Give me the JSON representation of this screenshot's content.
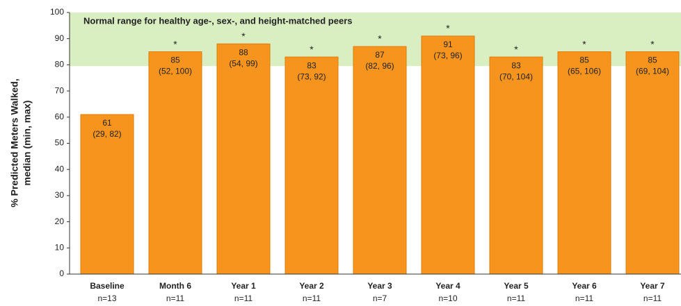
{
  "chart_data": {
    "type": "bar",
    "annotation": "Normal range for healthy age-, sex-, and height-matched peers",
    "normal_range": [
      79.5,
      100
    ],
    "normal_color": "#d9efc2",
    "ylabel": [
      "% Predicted Meters Walked,",
      "median (min, max)"
    ],
    "categories": [
      "Baseline",
      "Month 6",
      "Year 1",
      "Year 2",
      "Year 3",
      "Year 4",
      "Year 5",
      "Year 6",
      "Year 7"
    ],
    "n": [
      "n=13",
      "n=11",
      "n=11",
      "n=11",
      "n=7",
      "n=10",
      "n=11",
      "n=11",
      "n=11"
    ],
    "values": [
      61,
      85,
      88,
      83,
      87,
      91,
      83,
      85,
      85
    ],
    "ranges": [
      "(29, 82)",
      "(52, 100)",
      "(54, 99)",
      "(73, 92)",
      "(82, 96)",
      "(73, 96)",
      "(70, 104)",
      "(65, 106)",
      "(69, 104)"
    ],
    "markers": [
      null,
      "*",
      "*",
      "*",
      "*",
      "*",
      "*",
      "*",
      "*"
    ],
    "color": "#f7941d",
    "ylim": [
      0,
      100
    ],
    "yticks": [
      0,
      10,
      20,
      30,
      40,
      50,
      60,
      70,
      80,
      90,
      100
    ]
  }
}
